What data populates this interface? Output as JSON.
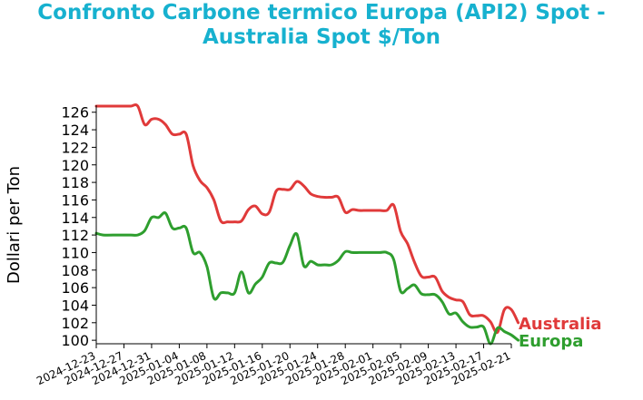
{
  "chart_data": {
    "type": "line",
    "title_lines": [
      "Confronto Carbone termico Europa (API2) Spot -",
      "Australia Spot $/Ton"
    ],
    "ylabel": "Dollari per Ton",
    "xlabel": "",
    "ylim": [
      99.6,
      126.8
    ],
    "y_ticks": [
      100,
      102,
      104,
      106,
      108,
      110,
      112,
      114,
      116,
      118,
      120,
      122,
      124,
      126
    ],
    "x_domain": [
      "2024-12-23",
      "2025-02-21"
    ],
    "x_ticks": [
      "2024-12-23",
      "2024-12-27",
      "2024-12-31",
      "2025-01-04",
      "2025-01-08",
      "2025-01-12",
      "2025-01-16",
      "2025-01-20",
      "2025-01-24",
      "2025-01-28",
      "2025-02-01",
      "2025-02-05",
      "2025-02-09",
      "2025-02-13",
      "2025-02-17",
      "2025-02-21"
    ],
    "title_color": "#17b1cf",
    "grid": false,
    "legend": "end-of-line labels",
    "series": [
      {
        "name": "Australia",
        "color": "#e03a3a",
        "points": [
          [
            "2024-12-23",
            126.7
          ],
          [
            "2024-12-24",
            126.7
          ],
          [
            "2024-12-26",
            126.7
          ],
          [
            "2024-12-27",
            126.7
          ],
          [
            "2024-12-28",
            126.7
          ],
          [
            "2024-12-29",
            126.7
          ],
          [
            "2024-12-30",
            124.6
          ],
          [
            "2024-12-31",
            125.2
          ],
          [
            "2025-01-01",
            125.2
          ],
          [
            "2025-01-02",
            124.6
          ],
          [
            "2025-01-03",
            123.5
          ],
          [
            "2025-01-04",
            123.5
          ],
          [
            "2025-01-05",
            123.5
          ],
          [
            "2025-01-06",
            119.9
          ],
          [
            "2025-01-07",
            118.2
          ],
          [
            "2025-01-08",
            117.4
          ],
          [
            "2025-01-09",
            116.0
          ],
          [
            "2025-01-10",
            113.6
          ],
          [
            "2025-01-11",
            113.5
          ],
          [
            "2025-01-12",
            113.5
          ],
          [
            "2025-01-13",
            113.6
          ],
          [
            "2025-01-14",
            114.9
          ],
          [
            "2025-01-15",
            115.3
          ],
          [
            "2025-01-16",
            114.4
          ],
          [
            "2025-01-17",
            114.6
          ],
          [
            "2025-01-18",
            117.0
          ],
          [
            "2025-01-19",
            117.2
          ],
          [
            "2025-01-20",
            117.2
          ],
          [
            "2025-01-21",
            118.1
          ],
          [
            "2025-01-22",
            117.6
          ],
          [
            "2025-01-23",
            116.7
          ],
          [
            "2025-01-24",
            116.4
          ],
          [
            "2025-01-25",
            116.3
          ],
          [
            "2025-01-26",
            116.3
          ],
          [
            "2025-01-27",
            116.3
          ],
          [
            "2025-01-28",
            114.6
          ],
          [
            "2025-01-29",
            114.9
          ],
          [
            "2025-01-30",
            114.8
          ],
          [
            "2025-01-31",
            114.8
          ],
          [
            "2025-02-01",
            114.8
          ],
          [
            "2025-02-02",
            114.8
          ],
          [
            "2025-02-03",
            114.8
          ],
          [
            "2025-02-04",
            115.4
          ],
          [
            "2025-02-05",
            112.4
          ],
          [
            "2025-02-06",
            111.0
          ],
          [
            "2025-02-07",
            108.9
          ],
          [
            "2025-02-08",
            107.3
          ],
          [
            "2025-02-09",
            107.2
          ],
          [
            "2025-02-10",
            107.2
          ],
          [
            "2025-02-11",
            105.6
          ],
          [
            "2025-02-12",
            104.9
          ],
          [
            "2025-02-13",
            104.6
          ],
          [
            "2025-02-14",
            104.4
          ],
          [
            "2025-02-15",
            102.9
          ],
          [
            "2025-02-16",
            102.8
          ],
          [
            "2025-02-17",
            102.8
          ],
          [
            "2025-02-18",
            102.1
          ],
          [
            "2025-02-19",
            100.9
          ],
          [
            "2025-02-20",
            103.5
          ],
          [
            "2025-02-21",
            103.5
          ],
          [
            "2025-02-22",
            102.0
          ]
        ]
      },
      {
        "name": "Europa",
        "color": "#2e9e2e",
        "points": [
          [
            "2024-12-23",
            112.2
          ],
          [
            "2024-12-24",
            112.0
          ],
          [
            "2024-12-26",
            112.0
          ],
          [
            "2024-12-27",
            112.0
          ],
          [
            "2024-12-28",
            112.0
          ],
          [
            "2024-12-29",
            112.0
          ],
          [
            "2024-12-30",
            112.5
          ],
          [
            "2024-12-31",
            114.0
          ],
          [
            "2025-01-01",
            114.0
          ],
          [
            "2025-01-02",
            114.5
          ],
          [
            "2025-01-03",
            112.8
          ],
          [
            "2025-01-04",
            112.8
          ],
          [
            "2025-01-05",
            112.8
          ],
          [
            "2025-01-06",
            110.0
          ],
          [
            "2025-01-07",
            110.0
          ],
          [
            "2025-01-08",
            108.4
          ],
          [
            "2025-01-09",
            104.8
          ],
          [
            "2025-01-10",
            105.4
          ],
          [
            "2025-01-11",
            105.4
          ],
          [
            "2025-01-12",
            105.4
          ],
          [
            "2025-01-13",
            107.8
          ],
          [
            "2025-01-14",
            105.4
          ],
          [
            "2025-01-15",
            106.4
          ],
          [
            "2025-01-16",
            107.2
          ],
          [
            "2025-01-17",
            108.8
          ],
          [
            "2025-01-18",
            108.8
          ],
          [
            "2025-01-19",
            108.9
          ],
          [
            "2025-01-20",
            110.8
          ],
          [
            "2025-01-21",
            112.1
          ],
          [
            "2025-01-22",
            108.5
          ],
          [
            "2025-01-23",
            109.0
          ],
          [
            "2025-01-24",
            108.6
          ],
          [
            "2025-01-25",
            108.6
          ],
          [
            "2025-01-26",
            108.6
          ],
          [
            "2025-01-27",
            109.1
          ],
          [
            "2025-01-28",
            110.1
          ],
          [
            "2025-01-29",
            110.0
          ],
          [
            "2025-01-30",
            110.0
          ],
          [
            "2025-01-31",
            110.0
          ],
          [
            "2025-02-01",
            110.0
          ],
          [
            "2025-02-02",
            110.0
          ],
          [
            "2025-02-03",
            110.0
          ],
          [
            "2025-02-04",
            109.2
          ],
          [
            "2025-02-05",
            105.6
          ],
          [
            "2025-02-06",
            105.9
          ],
          [
            "2025-02-07",
            106.3
          ],
          [
            "2025-02-08",
            105.3
          ],
          [
            "2025-02-09",
            105.2
          ],
          [
            "2025-02-10",
            105.2
          ],
          [
            "2025-02-11",
            104.4
          ],
          [
            "2025-02-12",
            103.0
          ],
          [
            "2025-02-13",
            103.1
          ],
          [
            "2025-02-14",
            102.1
          ],
          [
            "2025-02-15",
            101.5
          ],
          [
            "2025-02-16",
            101.5
          ],
          [
            "2025-02-17",
            101.5
          ],
          [
            "2025-02-18",
            99.6
          ],
          [
            "2025-02-19",
            101.4
          ],
          [
            "2025-02-20",
            101.0
          ],
          [
            "2025-02-21",
            100.6
          ],
          [
            "2025-02-22",
            100.0
          ]
        ]
      }
    ]
  }
}
